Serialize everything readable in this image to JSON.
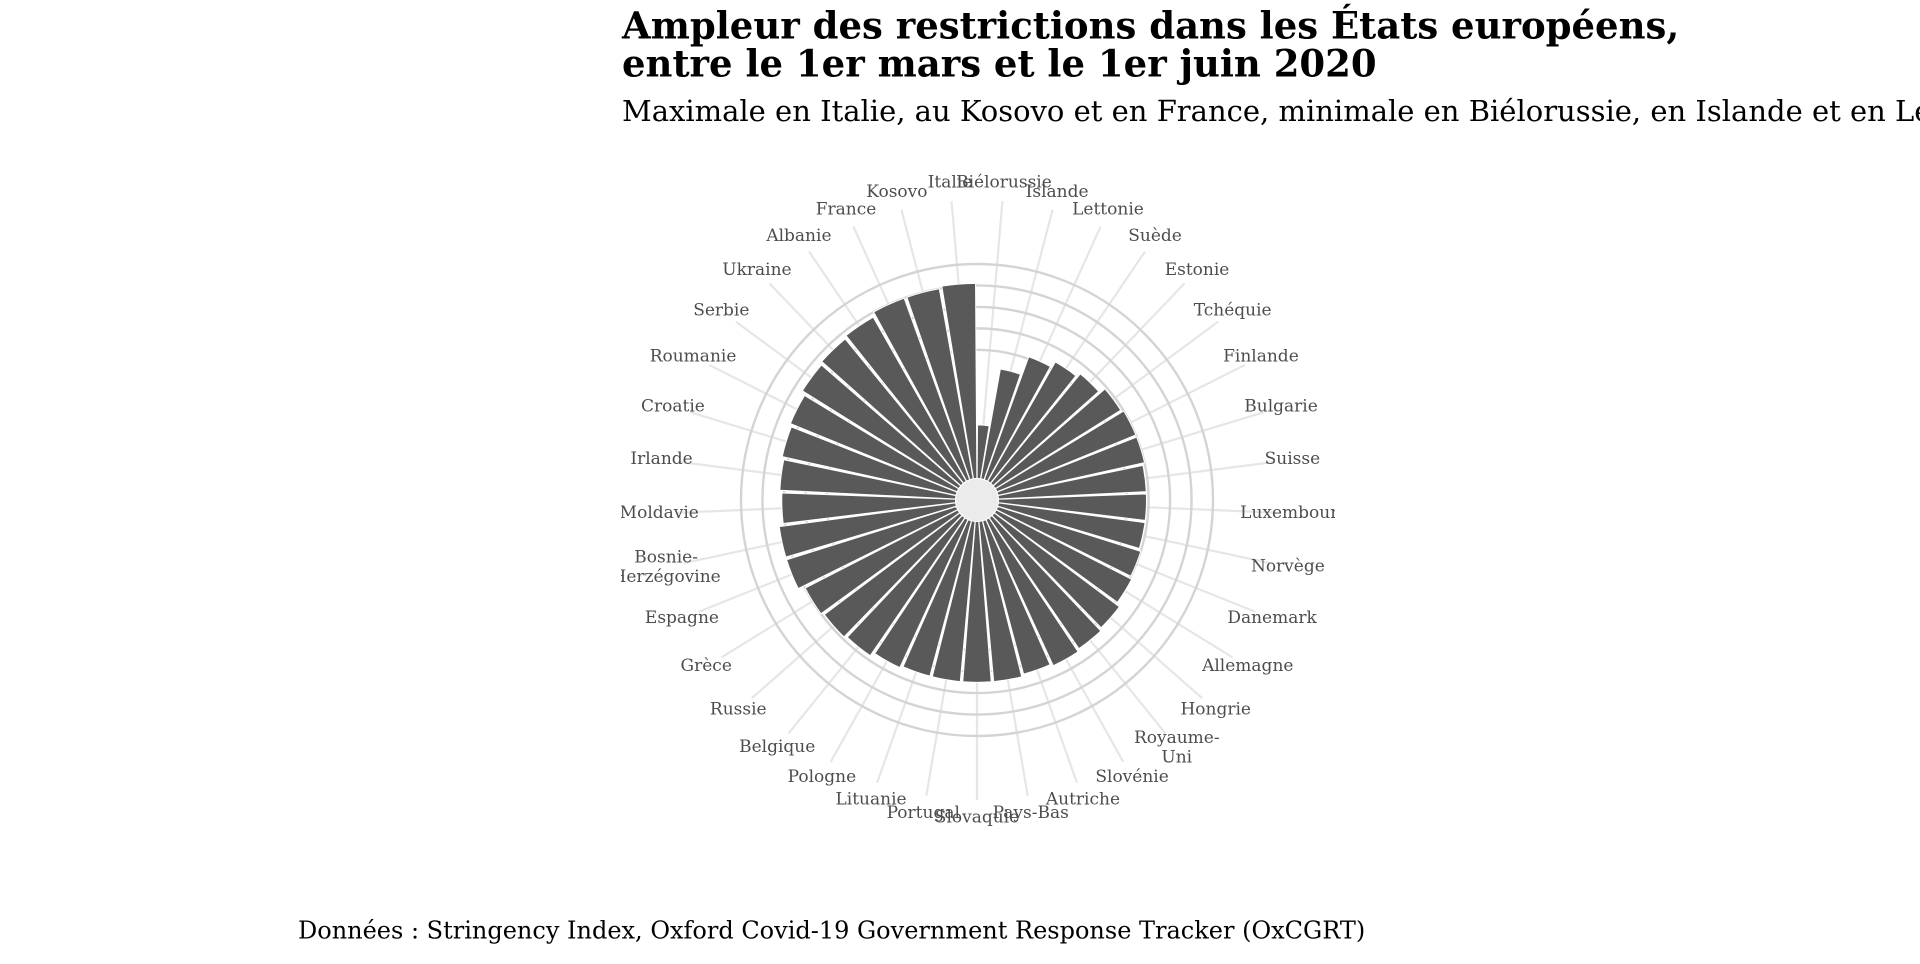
{
  "chart_data": {
    "type": "bar",
    "polar": true,
    "title": [
      "Ampleur des restrictions dans les États européens,",
      "entre le 1er mars et le 1er juin 2020"
    ],
    "subtitle": "Maximale en Italie, au Kosovo et en France, minimale en Biélorussie, en Islande et en Lettonie",
    "caption": "Données : Stringency Index, Oxford Covid-19 Government Response Tracker (OxCGRT)",
    "categories": [
      "Biélorussie",
      "Islande",
      "Lettonie",
      "Suède",
      "Estonie",
      "Tchéquie",
      "Finlande",
      "Bulgarie",
      "Suisse",
      "Luxembourg",
      "Norvège",
      "Danemark",
      "Allemagne",
      "Hongrie",
      "Royaume-Uni",
      "Slovénie",
      "Autriche",
      "Pays-Bas",
      "Slovaquie",
      "Portugal",
      "Lituanie",
      "Pologne",
      "Belgique",
      "Russie",
      "Grèce",
      "Espagne",
      "Bosnie-Herzégovine",
      "Moldavie",
      "Irlande",
      "Croatie",
      "Roumanie",
      "Serbie",
      "Ukraine",
      "Albanie",
      "France",
      "Kosovo",
      "Italie"
    ],
    "values": [
      25,
      52,
      61,
      64,
      66,
      69,
      70,
      70,
      69,
      69,
      69,
      70,
      71,
      73,
      74,
      75,
      74,
      75,
      75,
      75,
      75,
      76,
      78,
      79,
      80,
      83,
      83,
      81,
      82,
      83,
      84,
      86,
      87,
      88,
      90,
      90,
      91
    ],
    "color": "#595959",
    "ylim": [
      -10,
      100
    ],
    "yticks": [
      60,
      70,
      80,
      90,
      100
    ],
    "grid": true
  }
}
